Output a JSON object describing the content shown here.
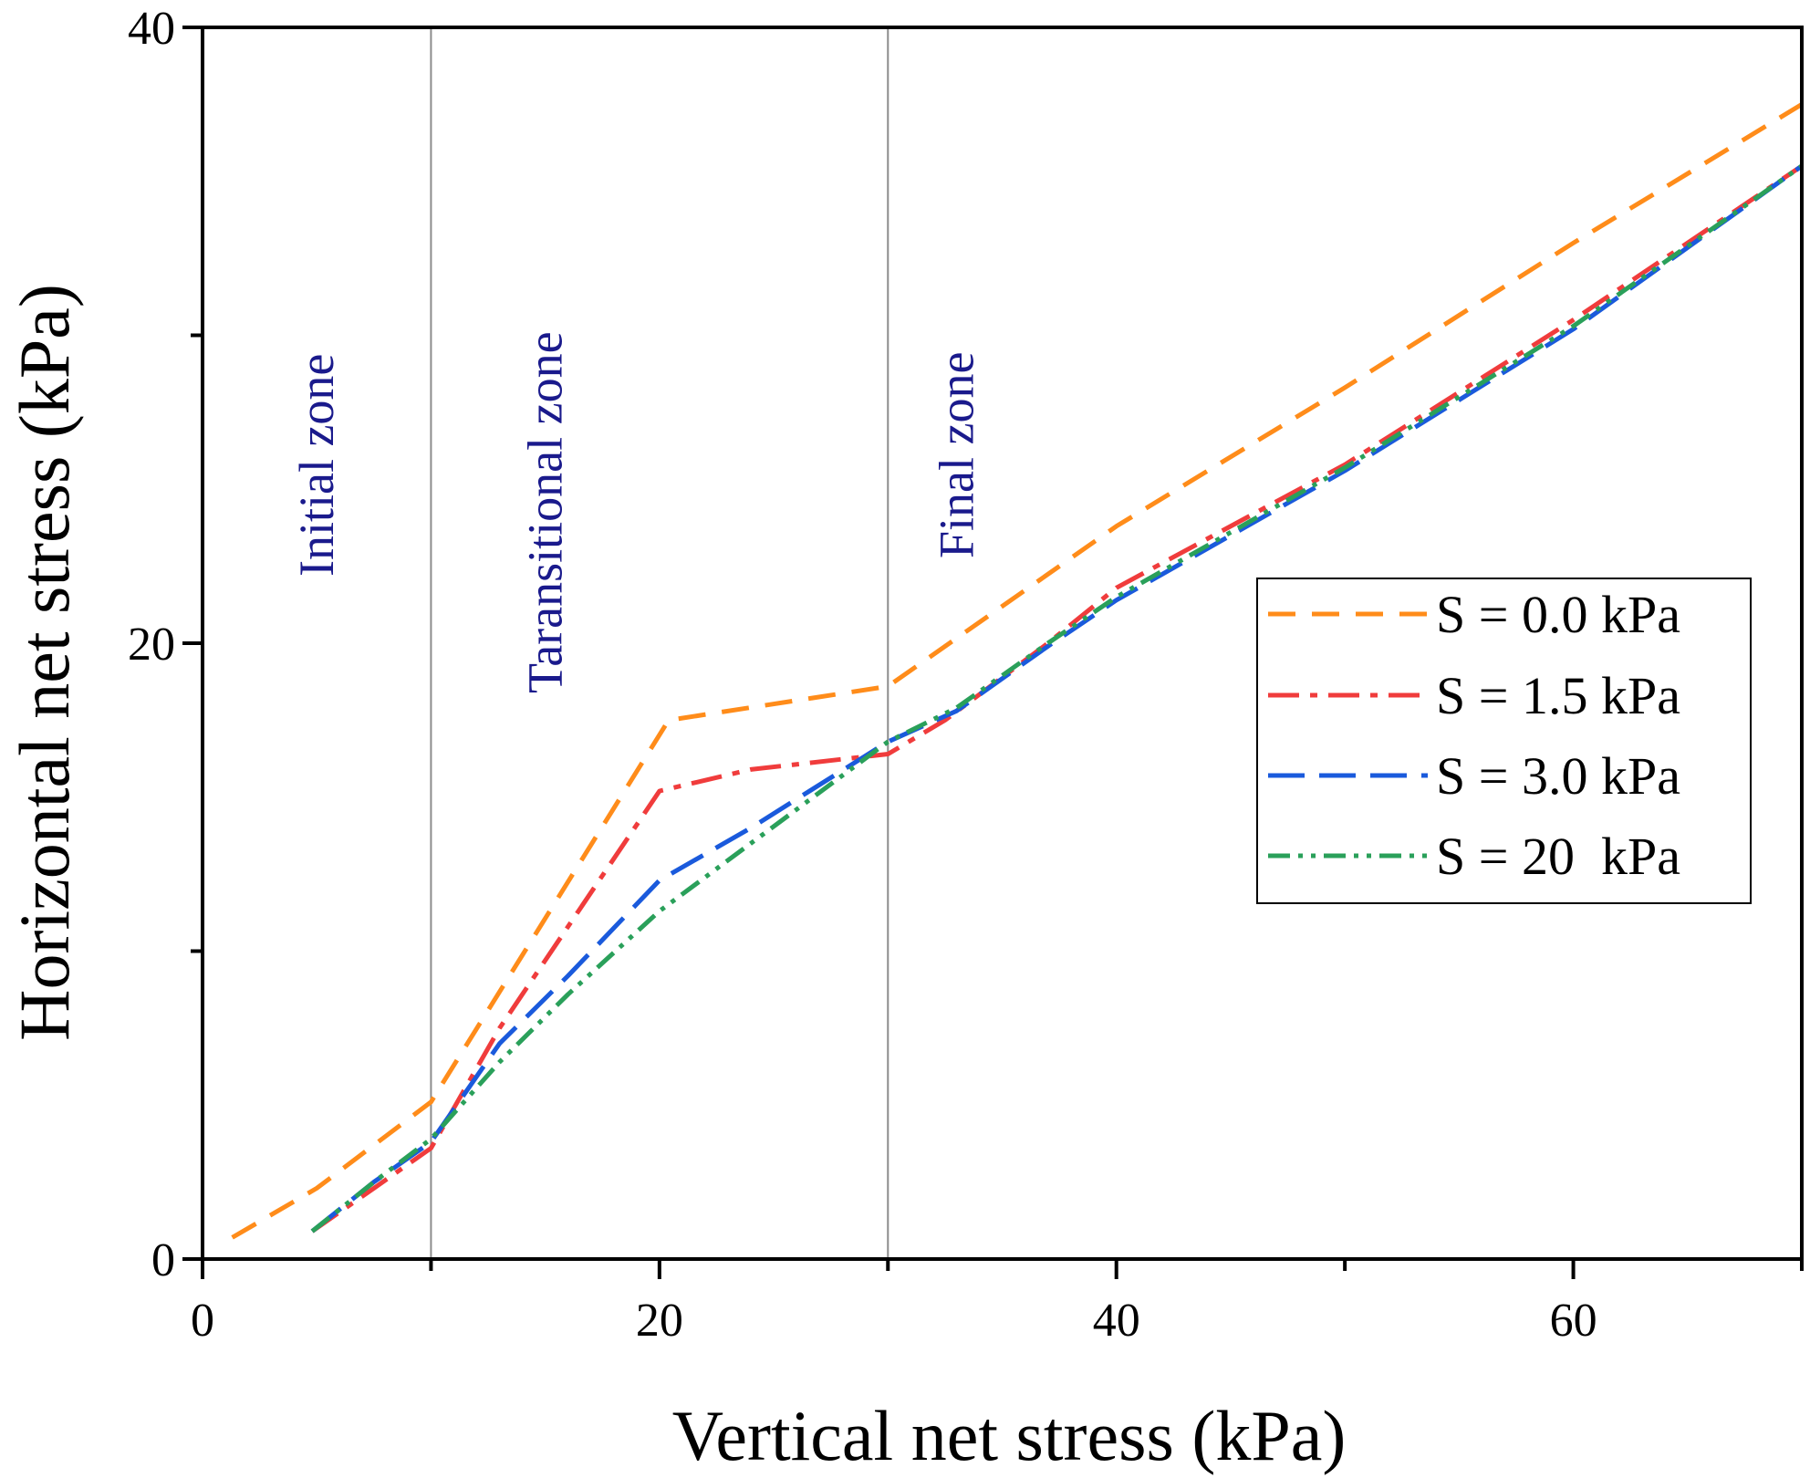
{
  "chart_data": {
    "type": "line",
    "title": "",
    "xlabel": "Vertical net stress (kPa)",
    "ylabel": "Horizontal net stress (kPa)",
    "xlim": [
      0,
      70
    ],
    "ylim": [
      0,
      40
    ],
    "x_ticks": [
      0,
      20,
      40,
      60
    ],
    "x_minor_ticks": [
      10,
      30,
      50,
      70
    ],
    "y_ticks": [
      0,
      20,
      40
    ],
    "y_minor_ticks": [
      10,
      30
    ],
    "grid": false,
    "legend_position": "right",
    "zone_lines": [
      10,
      30
    ],
    "zones": [
      {
        "label": "Initial zone",
        "x": 5
      },
      {
        "label": "Taransitional zone",
        "x": 15
      },
      {
        "label": "Final zone",
        "x": 33
      }
    ],
    "series": [
      {
        "name": "S = 0.0 kPa",
        "color": "#ff8c1a",
        "dash": "dash",
        "x": [
          1.3,
          5,
          10,
          20.4,
          30,
          40,
          50,
          60,
          70
        ],
        "y": [
          0.7,
          2.3,
          5.1,
          17.5,
          18.6,
          23.8,
          28.3,
          33.0,
          37.5
        ]
      },
      {
        "name": "S = 1.5 kPa",
        "color": "#f03c3c",
        "dash": "dashdot",
        "x": [
          4.8,
          7.5,
          10,
          13,
          16,
          20,
          24,
          30,
          32.5,
          37,
          40,
          50,
          60,
          70
        ],
        "y": [
          0.9,
          2.3,
          3.6,
          7.5,
          10.8,
          15.2,
          15.9,
          16.4,
          17.5,
          20.0,
          21.8,
          25.8,
          30.5,
          35.5
        ]
      },
      {
        "name": "S = 3.0 kPa",
        "color": "#1a5adc",
        "dash": "longdash",
        "x": [
          4.8,
          7.5,
          10,
          13,
          16,
          20,
          24,
          30,
          33,
          37,
          40,
          50,
          60,
          70
        ],
        "y": [
          0.9,
          2.5,
          3.8,
          7.0,
          9.2,
          12.3,
          14.0,
          16.8,
          17.8,
          19.9,
          21.4,
          25.6,
          30.2,
          35.5
        ]
      },
      {
        "name": "S = 20  kPa",
        "color": "#2aa05a",
        "dash": "dashdotdot",
        "x": [
          4.8,
          7.5,
          10,
          13,
          16,
          20,
          24,
          30,
          33,
          37,
          40,
          50,
          60,
          70
        ],
        "y": [
          0.9,
          2.5,
          3.9,
          6.4,
          8.6,
          11.3,
          13.5,
          16.8,
          17.9,
          20.0,
          21.5,
          25.7,
          30.3,
          35.5
        ]
      }
    ]
  }
}
